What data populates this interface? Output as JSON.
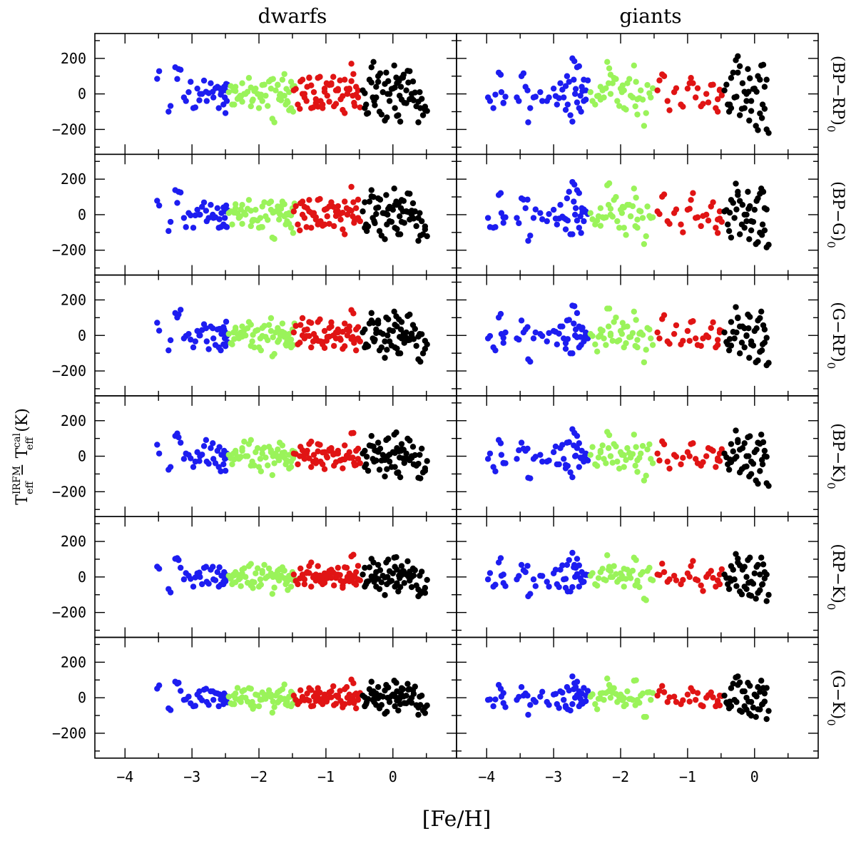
{
  "figure": {
    "column_titles": [
      "dwarfs",
      "giants"
    ],
    "xlabel": "[Fe/H]",
    "ylabel_main": "T",
    "ylabel_sup1": "IRFM",
    "ylabel_sub1": "eff",
    "ylabel_mid": " − T",
    "ylabel_sup2": "cal",
    "ylabel_sub2": "eff",
    "ylabel_unit": " (K)"
  },
  "chart_data": {
    "type": "scatter",
    "columns": [
      "dwarfs",
      "giants"
    ],
    "rows": [
      {
        "label": "(BP−RP)",
        "subscript": "0"
      },
      {
        "label": "(BP−G)",
        "subscript": "0"
      },
      {
        "label": "(G−RP)",
        "subscript": "0"
      },
      {
        "label": "(BP−K)",
        "subscript": "0"
      },
      {
        "label": "(RP−K)",
        "subscript": "0"
      },
      {
        "label": "(G−K)",
        "subscript": "0"
      }
    ],
    "xlabel": "[Fe/H]",
    "ylabel": "T_eff^IRFM − T_eff^cal (K)",
    "xlim": {
      "dwarfs": [
        -4.45,
        0.95
      ],
      "giants": [
        -4.45,
        0.95
      ]
    },
    "ylim": [
      -340,
      340
    ],
    "xticks": [
      -4,
      -3,
      -2,
      -1,
      0
    ],
    "yticks": [
      -200,
      0,
      200
    ],
    "colors": {
      "blue": "#1d1df0",
      "green": "#9af35a",
      "red": "#e01414",
      "black": "#000000"
    },
    "metallicity_bins": [
      {
        "color": "blue",
        "range": [
          -4.0,
          -2.5
        ]
      },
      {
        "color": "green",
        "range": [
          -2.5,
          -1.5
        ]
      },
      {
        "color": "red",
        "range": [
          -1.5,
          -0.5
        ]
      },
      {
        "color": "black",
        "range": [
          -0.5,
          0.5
        ]
      }
    ],
    "dwarfs": {
      "blue": [
        [
          -3.52,
          85
        ],
        [
          -3.35,
          -100
        ],
        [
          -3.25,
          150
        ],
        [
          -3.2,
          140
        ],
        [
          -3.12,
          -20
        ],
        [
          -3.05,
          10
        ],
        [
          -2.98,
          -80
        ],
        [
          -2.92,
          30
        ],
        [
          -2.88,
          0
        ],
        [
          -2.82,
          75
        ],
        [
          -2.78,
          -40
        ],
        [
          -2.72,
          60
        ],
        [
          -2.68,
          -20
        ],
        [
          -2.62,
          40
        ],
        [
          -2.6,
          -80
        ],
        [
          -2.56,
          10
        ],
        [
          -2.53,
          -60
        ],
        [
          -2.52,
          40
        ],
        [
          -2.51,
          -20
        ],
        [
          -2.5,
          20
        ]
      ],
      "green": [
        [
          -2.45,
          10
        ],
        [
          -2.4,
          -60
        ],
        [
          -2.35,
          40
        ],
        [
          -2.3,
          -20
        ],
        [
          -2.25,
          60
        ],
        [
          -2.2,
          0
        ],
        [
          -2.15,
          90
        ],
        [
          -2.1,
          -40
        ],
        [
          -2.05,
          30
        ],
        [
          -2.0,
          -80
        ],
        [
          -1.95,
          50
        ],
        [
          -1.9,
          -10
        ],
        [
          -1.85,
          70
        ],
        [
          -1.8,
          -140
        ],
        [
          -1.75,
          20
        ],
        [
          -1.7,
          -30
        ],
        [
          -1.65,
          80
        ],
        [
          -1.6,
          -60
        ],
        [
          -1.55,
          10
        ],
        [
          -1.5,
          40
        ],
        [
          -2.28,
          -10
        ],
        [
          -2.12,
          -70
        ],
        [
          -1.98,
          -20
        ],
        [
          -1.82,
          30
        ],
        [
          -1.68,
          0
        ],
        [
          -1.58,
          -40
        ],
        [
          -2.38,
          20
        ],
        [
          -1.72,
          50
        ],
        [
          -1.62,
          -10
        ],
        [
          -1.52,
          -80
        ]
      ],
      "red": [
        [
          -1.48,
          20
        ],
        [
          -1.42,
          -60
        ],
        [
          -1.38,
          70
        ],
        [
          -1.32,
          -20
        ],
        [
          -1.28,
          40
        ],
        [
          -1.22,
          -80
        ],
        [
          -1.18,
          10
        ],
        [
          -1.12,
          90
        ],
        [
          -1.08,
          -40
        ],
        [
          -1.02,
          30
        ],
        [
          -0.98,
          -10
        ],
        [
          -0.92,
          60
        ],
        [
          -0.88,
          -70
        ],
        [
          -0.82,
          20
        ],
        [
          -0.78,
          -30
        ],
        [
          -0.72,
          80
        ],
        [
          -0.68,
          0
        ],
        [
          -0.62,
          170
        ],
        [
          -0.58,
          -50
        ],
        [
          -0.55,
          40
        ],
        [
          -0.52,
          -20
        ],
        [
          -1.35,
          0
        ],
        [
          -1.15,
          -30
        ],
        [
          -0.95,
          50
        ],
        [
          -0.75,
          -90
        ],
        [
          -0.65,
          30
        ],
        [
          -1.25,
          90
        ],
        [
          -1.05,
          -60
        ],
        [
          -0.85,
          20
        ],
        [
          -0.6,
          -10
        ]
      ],
      "black": [
        [
          -0.45,
          20
        ],
        [
          -0.4,
          -60
        ],
        [
          -0.35,
          80
        ],
        [
          -0.3,
          -20
        ],
        [
          -0.25,
          40
        ],
        [
          -0.2,
          -100
        ],
        [
          -0.15,
          10
        ],
        [
          -0.1,
          120
        ],
        [
          -0.05,
          -40
        ],
        [
          0.0,
          30
        ],
        [
          0.03,
          -80
        ],
        [
          0.06,
          60
        ],
        [
          0.1,
          -10
        ],
        [
          0.13,
          90
        ],
        [
          0.17,
          -50
        ],
        [
          0.2,
          20
        ],
        [
          0.25,
          -30
        ],
        [
          0.3,
          70
        ],
        [
          0.35,
          -70
        ],
        [
          0.4,
          10
        ],
        [
          0.45,
          -120
        ],
        [
          0.48,
          -90
        ],
        [
          -0.32,
          150
        ],
        [
          -0.12,
          -150
        ],
        [
          0.08,
          -120
        ],
        [
          0.22,
          130
        ],
        [
          -0.42,
          -80
        ],
        [
          -0.22,
          100
        ],
        [
          0.02,
          160
        ],
        [
          0.38,
          -160
        ],
        [
          -0.08,
          0
        ],
        [
          0.12,
          40
        ],
        [
          -0.28,
          -40
        ],
        [
          0.28,
          0
        ]
      ]
    },
    "giants": {
      "blue": [
        [
          -3.98,
          -20
        ],
        [
          -3.9,
          -80
        ],
        [
          -3.82,
          120
        ],
        [
          -3.78,
          10
        ],
        [
          -3.75,
          -50
        ],
        [
          -3.55,
          -20
        ],
        [
          -3.48,
          100
        ],
        [
          -3.42,
          40
        ],
        [
          -3.38,
          -160
        ],
        [
          -3.3,
          -20
        ],
        [
          -3.2,
          10
        ],
        [
          -3.1,
          -40
        ],
        [
          -3.0,
          30
        ],
        [
          -2.95,
          -60
        ],
        [
          -2.9,
          60
        ],
        [
          -2.85,
          -20
        ],
        [
          -2.8,
          100
        ],
        [
          -2.75,
          -120
        ],
        [
          -2.72,
          200
        ],
        [
          -2.68,
          0
        ],
        [
          -2.65,
          150
        ],
        [
          -2.62,
          -80
        ],
        [
          -2.58,
          40
        ],
        [
          -2.55,
          -40
        ],
        [
          -2.52,
          20
        ],
        [
          -2.82,
          -90
        ],
        [
          -2.7,
          80
        ],
        [
          -2.6,
          -10
        ]
      ],
      "green": [
        [
          -2.45,
          10
        ],
        [
          -2.38,
          -60
        ],
        [
          -2.3,
          40
        ],
        [
          -2.25,
          -20
        ],
        [
          -2.2,
          180
        ],
        [
          -2.15,
          0
        ],
        [
          -2.1,
          90
        ],
        [
          -2.05,
          -40
        ],
        [
          -2.0,
          30
        ],
        [
          -1.95,
          -80
        ],
        [
          -1.9,
          60
        ],
        [
          -1.85,
          -10
        ],
        [
          -1.8,
          160
        ],
        [
          -1.75,
          -30
        ],
        [
          -1.7,
          20
        ],
        [
          -1.65,
          -180
        ],
        [
          -1.6,
          50
        ],
        [
          -1.55,
          -20
        ],
        [
          -2.33,
          -10
        ],
        [
          -2.18,
          60
        ],
        [
          -1.98,
          10
        ],
        [
          -1.78,
          -70
        ]
      ],
      "red": [
        [
          -1.45,
          20
        ],
        [
          -1.38,
          110
        ],
        [
          -1.3,
          -40
        ],
        [
          -1.2,
          10
        ],
        [
          -1.1,
          -60
        ],
        [
          -1.0,
          30
        ],
        [
          -0.95,
          90
        ],
        [
          -0.88,
          -20
        ],
        [
          -0.8,
          -70
        ],
        [
          -0.72,
          0
        ],
        [
          -0.65,
          50
        ],
        [
          -0.58,
          -80
        ],
        [
          -0.55,
          -30
        ],
        [
          -0.52,
          20
        ]
      ],
      "black": [
        [
          -0.45,
          20
        ],
        [
          -0.4,
          -60
        ],
        [
          -0.35,
          90
        ],
        [
          -0.3,
          -20
        ],
        [
          -0.28,
          190
        ],
        [
          -0.22,
          -120
        ],
        [
          -0.18,
          60
        ],
        [
          -0.15,
          -80
        ],
        [
          -0.1,
          140
        ],
        [
          -0.05,
          -40
        ],
        [
          0.0,
          30
        ],
        [
          0.02,
          -180
        ],
        [
          0.05,
          100
        ],
        [
          0.08,
          -110
        ],
        [
          0.1,
          160
        ],
        [
          0.12,
          -60
        ],
        [
          0.15,
          40
        ],
        [
          -0.38,
          -100
        ],
        [
          -0.25,
          120
        ],
        [
          -0.12,
          0
        ],
        [
          0.18,
          -200
        ],
        [
          -0.08,
          -150
        ]
      ]
    }
  }
}
